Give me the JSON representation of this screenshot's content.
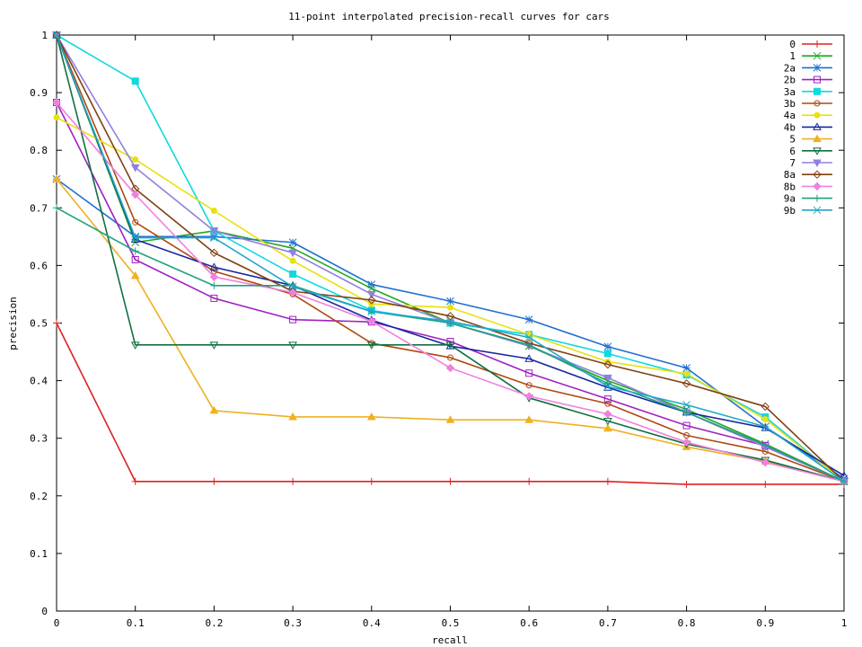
{
  "chart_data": {
    "type": "line",
    "title": "11-point interpolated precision-recall curves for cars",
    "xlabel": "recall",
    "ylabel": "precision",
    "xlim": [
      0,
      1
    ],
    "ylim": [
      0,
      1
    ],
    "x_ticks": [
      "0",
      "0.1",
      "0.2",
      "0.3",
      "0.4",
      "0.5",
      "0.6",
      "0.7",
      "0.8",
      "0.9",
      "1"
    ],
    "y_ticks": [
      "0",
      "0.1",
      "0.2",
      "0.3",
      "0.4",
      "0.5",
      "0.6",
      "0.7",
      "0.8",
      "0.9",
      "1"
    ],
    "legend_position": "top-right",
    "grid": false,
    "x": [
      0,
      0.1,
      0.2,
      0.3,
      0.4,
      0.5,
      0.6,
      0.7,
      0.8,
      0.9,
      1.0
    ],
    "series": [
      {
        "name": "0",
        "color": "#e02020",
        "marker": "plus",
        "values": [
          0.5,
          0.225,
          0.225,
          0.225,
          0.225,
          0.225,
          0.225,
          0.225,
          0.22,
          0.22,
          0.22
        ]
      },
      {
        "name": "1",
        "color": "#21a821",
        "marker": "cross",
        "values": [
          1.0,
          0.64,
          0.66,
          0.63,
          0.56,
          0.5,
          0.46,
          0.4,
          0.35,
          0.29,
          0.225
        ]
      },
      {
        "name": "2a",
        "color": "#2070d0",
        "marker": "star",
        "values": [
          0.75,
          0.65,
          0.65,
          0.64,
          0.567,
          0.538,
          0.506,
          0.459,
          0.422,
          0.32,
          0.23
        ]
      },
      {
        "name": "2b",
        "color": "#a020c0",
        "marker": "square-open",
        "values": [
          0.883,
          0.61,
          0.543,
          0.506,
          0.502,
          0.468,
          0.413,
          0.368,
          0.322,
          0.287,
          0.225
        ]
      },
      {
        "name": "3a",
        "color": "#10d8e0",
        "marker": "square-filled",
        "values": [
          1.0,
          0.92,
          0.66,
          0.585,
          0.522,
          0.5,
          0.48,
          0.447,
          0.41,
          0.337,
          0.225
        ]
      },
      {
        "name": "3b",
        "color": "#b04810",
        "marker": "circle-open",
        "values": [
          1.0,
          0.675,
          0.59,
          0.55,
          0.465,
          0.44,
          0.392,
          0.36,
          0.305,
          0.277,
          0.225
        ]
      },
      {
        "name": "4a",
        "color": "#e8e010",
        "marker": "circle-filled",
        "values": [
          0.857,
          0.784,
          0.695,
          0.608,
          0.533,
          0.527,
          0.48,
          0.433,
          0.412,
          0.333,
          0.225
        ]
      },
      {
        "name": "4b",
        "color": "#1828a0",
        "marker": "triangle-open",
        "values": [
          1.0,
          0.645,
          0.597,
          0.565,
          0.505,
          0.46,
          0.438,
          0.388,
          0.345,
          0.318,
          0.235
        ]
      },
      {
        "name": "5",
        "color": "#f0b020",
        "marker": "triangle-filled",
        "values": [
          0.75,
          0.582,
          0.348,
          0.337,
          0.337,
          0.332,
          0.332,
          0.317,
          0.285,
          0.26,
          0.225
        ]
      },
      {
        "name": "6",
        "color": "#107040",
        "marker": "triangle-down-open",
        "values": [
          1.0,
          0.462,
          0.462,
          0.462,
          0.462,
          0.462,
          0.37,
          0.33,
          0.29,
          0.262,
          0.225
        ]
      },
      {
        "name": "7",
        "color": "#9080e0",
        "marker": "triangle-down-filled",
        "values": [
          1.0,
          0.77,
          0.66,
          0.622,
          0.55,
          0.5,
          0.46,
          0.405,
          0.345,
          0.285,
          0.225
        ]
      },
      {
        "name": "8a",
        "color": "#804010",
        "marker": "diamond-open",
        "values": [
          1.0,
          0.733,
          0.622,
          0.555,
          0.54,
          0.512,
          0.465,
          0.428,
          0.395,
          0.355,
          0.225
        ]
      },
      {
        "name": "8b",
        "color": "#f080e0",
        "marker": "diamond-filled",
        "values": [
          0.883,
          0.723,
          0.58,
          0.553,
          0.503,
          0.422,
          0.373,
          0.342,
          0.293,
          0.258,
          0.225
        ]
      },
      {
        "name": "9a",
        "color": "#20a080",
        "marker": "plus",
        "values": [
          0.7,
          0.625,
          0.565,
          0.565,
          0.52,
          0.5,
          0.462,
          0.395,
          0.345,
          0.288,
          0.225
        ]
      },
      {
        "name": "9b",
        "color": "#20a8c8",
        "marker": "cross",
        "values": [
          1.0,
          0.648,
          0.648,
          0.563,
          0.52,
          0.503,
          0.475,
          0.39,
          0.358,
          0.32,
          0.225
        ]
      }
    ]
  }
}
